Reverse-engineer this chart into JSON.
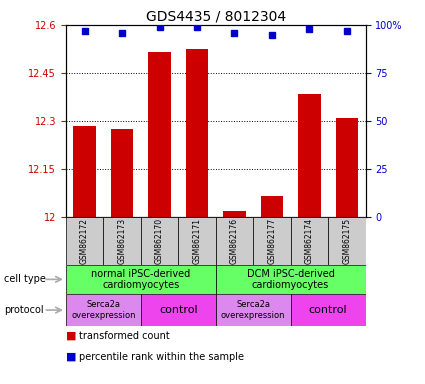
{
  "title": "GDS4435 / 8012304",
  "samples": [
    "GSM862172",
    "GSM862173",
    "GSM862170",
    "GSM862171",
    "GSM862176",
    "GSM862177",
    "GSM862174",
    "GSM862175"
  ],
  "red_values": [
    12.285,
    12.275,
    12.515,
    12.525,
    12.02,
    12.065,
    12.385,
    12.31
  ],
  "blue_values": [
    97,
    96,
    99,
    99,
    96,
    95,
    98,
    97
  ],
  "ylim_left": [
    12.0,
    12.6
  ],
  "ylim_right": [
    0,
    100
  ],
  "yticks_left": [
    12.0,
    12.15,
    12.3,
    12.45,
    12.6
  ],
  "ytick_labels_left": [
    "12",
    "12.15",
    "12.3",
    "12.45",
    "12.6"
  ],
  "yticks_right": [
    0,
    25,
    50,
    75,
    100
  ],
  "ytick_labels_right": [
    "0",
    "25",
    "50",
    "75",
    "100%"
  ],
  "red_color": "#cc0000",
  "blue_color": "#0000cc",
  "bar_width": 0.6,
  "cell_type_labels": [
    "normal iPSC-derived\ncardiomyocytes",
    "DCM iPSC-derived\ncardiomyocytes"
  ],
  "cell_type_color": "#66ff66",
  "protocol_serca_color": "#dd88ee",
  "protocol_control_color": "#ee44ee",
  "sample_bg_color": "#cccccc",
  "left_label_color": "#cc0000",
  "right_label_color": "#0000cc",
  "grid_color": "#000000",
  "arrow_color": "#aaaaaa",
  "title_fontsize": 10,
  "tick_fontsize": 7,
  "sample_fontsize": 5.5,
  "cell_type_fontsize": 7,
  "protocol_serca_fontsize": 6,
  "protocol_control_fontsize": 8,
  "legend_fontsize": 7
}
